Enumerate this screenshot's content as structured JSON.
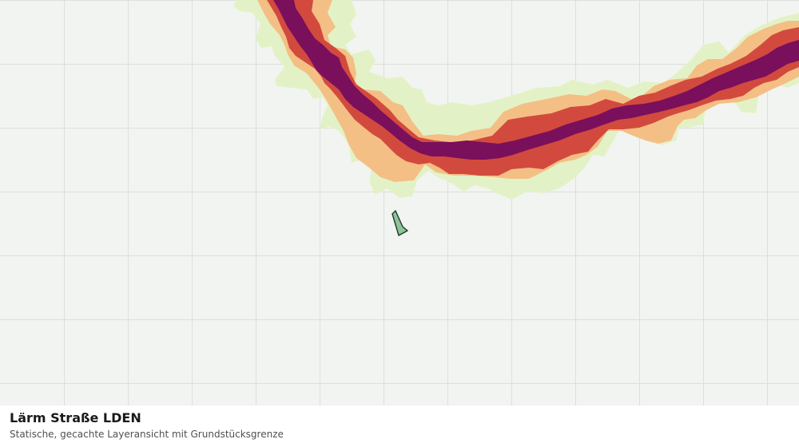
{
  "map": {
    "layer_name": "Lärm Straße LDEN",
    "description": "Statische, gecachte Layeransicht mit Grundstücksgrenze",
    "colors": {
      "background": "#f2f4f1",
      "grid": "#dcdfdc",
      "band_lightgreen": "#e3f2c6",
      "band_orange": "#f4bf85",
      "band_red": "#d24a3e",
      "band_purple": "#7a0f5c",
      "parcel_fill": "#8fc29a",
      "parcel_stroke": "#1f3b24"
    }
  }
}
